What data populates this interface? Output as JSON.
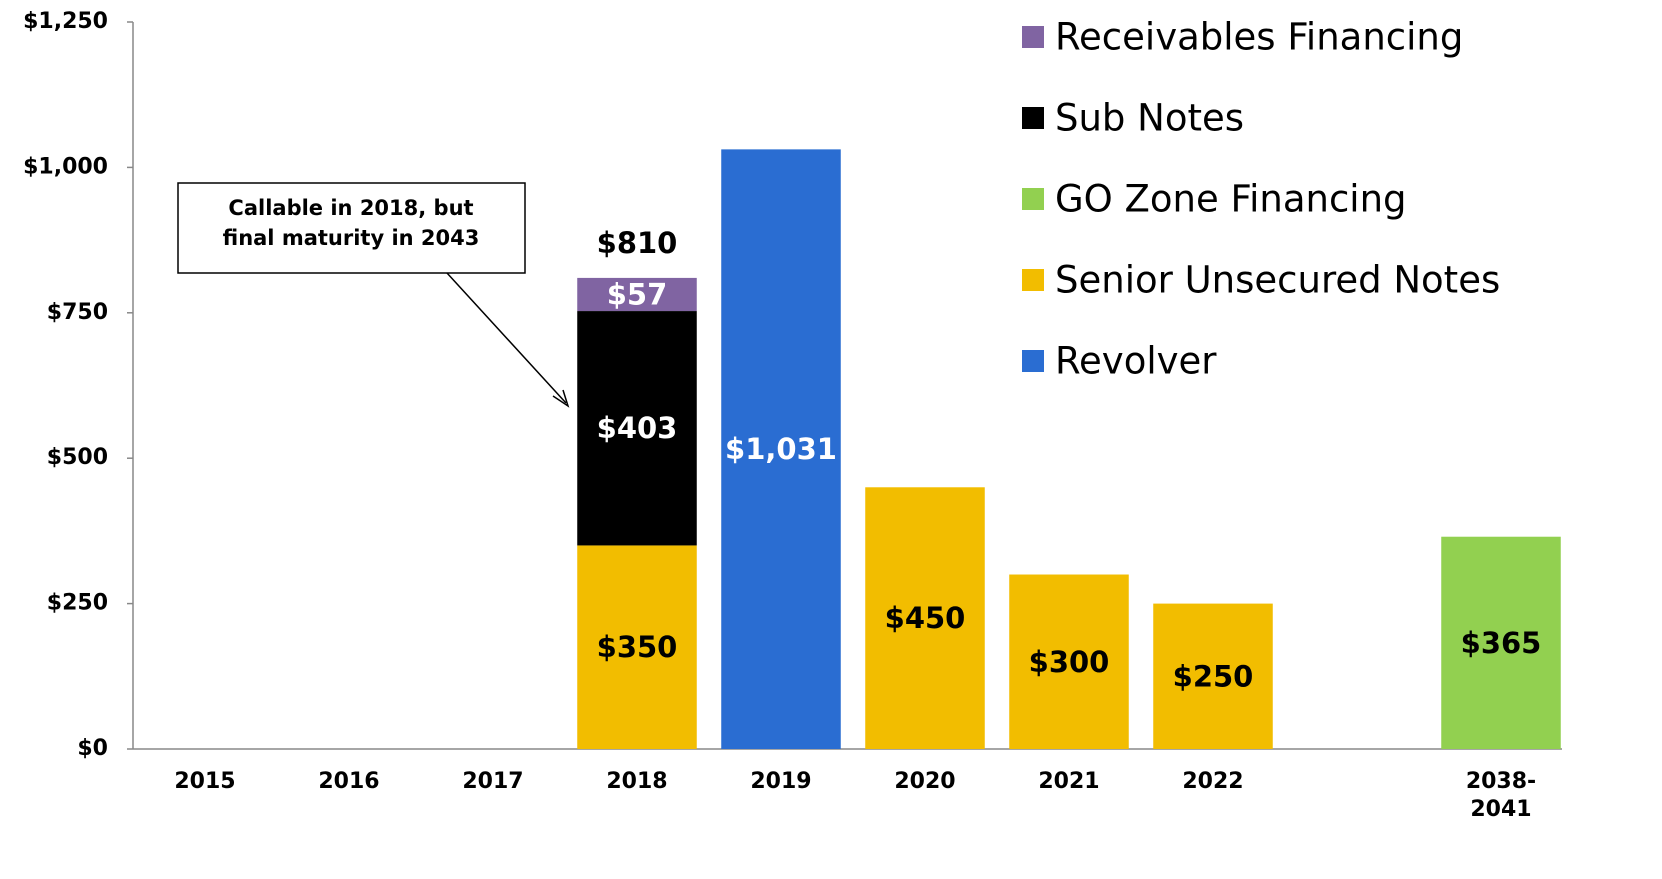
{
  "chart_data": {
    "type": "stacked_bar",
    "categories": [
      "2015",
      "2016",
      "2017",
      "2018",
      "2019",
      "2020",
      "2021",
      "2022",
      null,
      "2038-2041"
    ],
    "series": [
      {
        "name": "Revolver",
        "color": "#2a6dd2",
        "label_color": "#ffffff",
        "values": [
          null,
          null,
          null,
          null,
          1031,
          null,
          null,
          null,
          null,
          null
        ],
        "value_labels": [
          null,
          null,
          null,
          null,
          "$1,031",
          null,
          null,
          null,
          null,
          null
        ]
      },
      {
        "name": "Senior Unsecured Notes",
        "color": "#f2bd00",
        "label_color": "#000000",
        "values": [
          null,
          null,
          null,
          350,
          null,
          450,
          300,
          250,
          null,
          null
        ],
        "value_labels": [
          null,
          null,
          null,
          "$350",
          null,
          "$450",
          "$300",
          "$250",
          null,
          null
        ]
      },
      {
        "name": "GO Zone Financing",
        "color": "#92d050",
        "label_color": "#000000",
        "values": [
          null,
          null,
          null,
          null,
          null,
          null,
          null,
          null,
          null,
          365
        ],
        "value_labels": [
          null,
          null,
          null,
          null,
          null,
          null,
          null,
          null,
          null,
          "$365"
        ]
      },
      {
        "name": "Sub Notes",
        "color": "#000000",
        "label_color": "#ffffff",
        "values": [
          null,
          null,
          null,
          403,
          null,
          null,
          null,
          null,
          null,
          null
        ],
        "value_labels": [
          null,
          null,
          null,
          "$403",
          null,
          null,
          null,
          null,
          null,
          null
        ]
      },
      {
        "name": "Receivables Financing",
        "color": "#8064a2",
        "label_color": "#ffffff",
        "values": [
          null,
          null,
          null,
          57,
          null,
          null,
          null,
          null,
          null,
          null
        ],
        "value_labels": [
          null,
          null,
          null,
          "$57",
          null,
          null,
          null,
          null,
          null,
          null
        ]
      }
    ],
    "totals": [
      null,
      null,
      null,
      810,
      null,
      null,
      null,
      null,
      null,
      null
    ],
    "total_labels": [
      null,
      null,
      null,
      "$810",
      null,
      null,
      null,
      null,
      null,
      null
    ],
    "annotation": [
      "Callable in 2018, but",
      "final maturity in 2043"
    ],
    "ylim": [
      0,
      1250
    ],
    "yticks": [
      {
        "value": 0,
        "label": "$0"
      },
      {
        "value": 250,
        "label": "$250"
      },
      {
        "value": 500,
        "label": "$500"
      },
      {
        "value": 750,
        "label": "$750"
      },
      {
        "value": 1000,
        "label": "$1,000"
      },
      {
        "value": 1250,
        "label": "$1,250"
      }
    ],
    "legend": "top-right",
    "grid": false
  }
}
